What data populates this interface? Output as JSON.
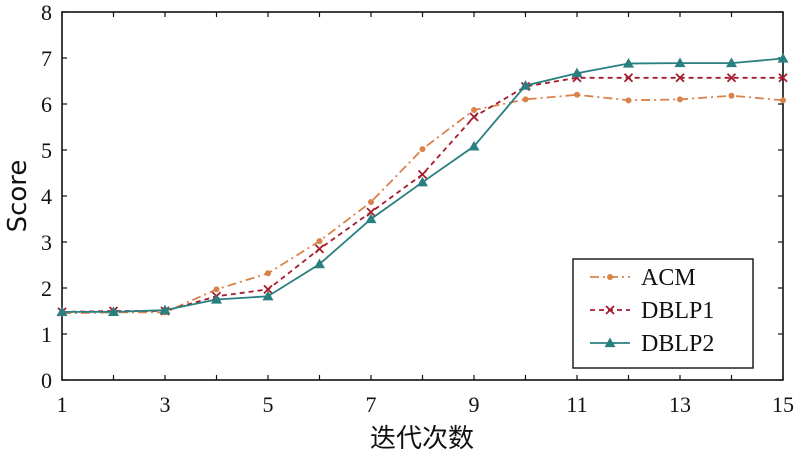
{
  "chart_data": {
    "type": "line",
    "xlabel": "迭代次数",
    "ylabel": "Score",
    "xlim": [
      1,
      15
    ],
    "ylim": [
      0,
      8
    ],
    "xticks": [
      "1",
      "3",
      "5",
      "7",
      "9",
      "11",
      "13",
      "15"
    ],
    "yticks": [
      "0",
      "1",
      "2",
      "3",
      "4",
      "5",
      "6",
      "7",
      "8"
    ],
    "grid": false,
    "legend_position": "bottom-right",
    "x": [
      1,
      2,
      3,
      4,
      5,
      6,
      7,
      8,
      9,
      10,
      11,
      12,
      13,
      14,
      15
    ],
    "series": [
      {
        "name": "ACM",
        "color": "#d9824a",
        "line_style": "dash-dot",
        "marker": "dot",
        "values": [
          1.45,
          1.47,
          1.47,
          1.97,
          2.32,
          3.02,
          3.87,
          5.02,
          5.87,
          6.1,
          6.2,
          6.08,
          6.1,
          6.18,
          6.08
        ]
      },
      {
        "name": "DBLP1",
        "color": "#a51c2d",
        "line_style": "dashed",
        "marker": "x",
        "values": [
          1.48,
          1.5,
          1.5,
          1.82,
          1.97,
          2.85,
          3.65,
          4.47,
          5.72,
          6.38,
          6.57,
          6.57,
          6.57,
          6.57,
          6.57
        ]
      },
      {
        "name": "DBLP2",
        "color": "#2a7f80",
        "line_style": "solid",
        "marker": "triangle",
        "values": [
          1.48,
          1.48,
          1.52,
          1.75,
          1.82,
          2.52,
          3.5,
          4.3,
          5.08,
          6.4,
          6.67,
          6.88,
          6.89,
          6.89,
          6.99
        ]
      }
    ]
  }
}
